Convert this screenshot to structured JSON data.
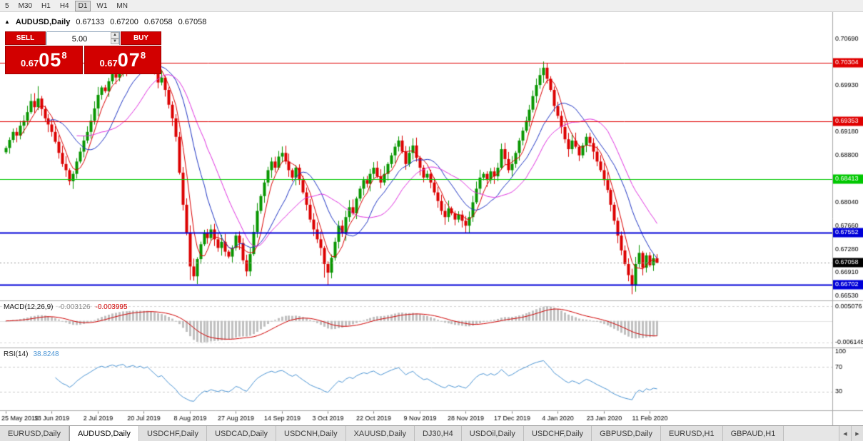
{
  "colors": {
    "one_click_red": "#d20000",
    "panel_separator": "#a8a8a8",
    "last_price_badge": "#000000"
  },
  "toolbar": {
    "periods": [
      "5",
      "M30",
      "H1",
      "H4",
      "D1",
      "W1",
      "MN"
    ],
    "active": "D1"
  },
  "chart_header": {
    "collapse_icon": "▲",
    "symbol": "AUDUSD,Daily",
    "open": "0.67133",
    "high": "0.67200",
    "low": "0.67058",
    "close": "0.67058"
  },
  "one_click": {
    "sell_label": "SELL",
    "buy_label": "BUY",
    "volume": "5.00",
    "spin_up_icon": "▲",
    "spin_down_icon": "▼",
    "sell_price": {
      "prefix": "0.67",
      "big": "05",
      "sup": "8"
    },
    "buy_price": {
      "prefix": "0.67",
      "big": "07",
      "sup": "8"
    }
  },
  "chart_data": {
    "type": "candlestick",
    "symbol": "AUDUSD",
    "timeframe": "Daily",
    "up_color": "#089600",
    "down_color": "#dc0000",
    "price_axis": {
      "min": 0.6645,
      "max": 0.7112,
      "ticks": [
        0.7069,
        0.6993,
        0.6918,
        0.688,
        0.6804,
        0.6766,
        0.6728,
        0.6691,
        0.6653
      ]
    },
    "levels": [
      {
        "price": 0.70304,
        "label": "0.70304",
        "color": "#e00000",
        "width": 1
      },
      {
        "price": 0.69353,
        "label": "0.69353",
        "color": "#e00000",
        "width": 1
      },
      {
        "price": 0.68413,
        "label": "0.68413",
        "color": "#00c800",
        "width": 1
      },
      {
        "price": 0.67552,
        "label": "0.67552",
        "color": "#0000d8",
        "width": 2
      },
      {
        "price": 0.66702,
        "label": "0.66702",
        "color": "#0000d8",
        "width": 2
      }
    ],
    "last_price": 0.67058,
    "last_price_label": "0.67058",
    "x_labels": [
      "25 May 2019",
      "13 Jun 2019",
      "2 Jul 2019",
      "20 Jul 2019",
      "8 Aug 2019",
      "27 Aug 2019",
      "14 Sep 2019",
      "3 Oct 2019",
      "22 Oct 2019",
      "9 Nov 2019",
      "28 Nov 2019",
      "17 Dec 2019",
      "4 Jan 2020",
      "23 Jan 2020",
      "11 Feb 2020"
    ],
    "x_label_indices": [
      0,
      13,
      26,
      39,
      52,
      65,
      78,
      91,
      104,
      117,
      130,
      143,
      156,
      169,
      182
    ],
    "candles": {
      "first_open": 0.6885,
      "closes": [
        0.6892,
        0.6905,
        0.6918,
        0.6912,
        0.6928,
        0.6936,
        0.695,
        0.6968,
        0.6958,
        0.6972,
        0.6955,
        0.694,
        0.693,
        0.6918,
        0.6902,
        0.6884,
        0.6866,
        0.6856,
        0.6838,
        0.685,
        0.687,
        0.6886,
        0.6904,
        0.6918,
        0.6936,
        0.6956,
        0.6978,
        0.699,
        0.6984,
        0.7,
        0.7012,
        0.7006,
        0.702,
        0.7028,
        0.7016,
        0.7024,
        0.7034,
        0.7026,
        0.7038,
        0.703,
        0.7042,
        0.7028,
        0.7014,
        0.6998,
        0.7006,
        0.6986,
        0.6962,
        0.694,
        0.691,
        0.6852,
        0.68,
        0.6755,
        0.67,
        0.6684,
        0.6712,
        0.6736,
        0.6754,
        0.6746,
        0.676,
        0.6744,
        0.673,
        0.674,
        0.6724,
        0.6716,
        0.673,
        0.675,
        0.6738,
        0.671,
        0.6692,
        0.672,
        0.6756,
        0.679,
        0.6814,
        0.6836,
        0.6856,
        0.687,
        0.686,
        0.6878,
        0.6884,
        0.687,
        0.6856,
        0.6844,
        0.686,
        0.684,
        0.682,
        0.68,
        0.6776,
        0.676,
        0.6744,
        0.673,
        0.6704,
        0.669,
        0.6714,
        0.674,
        0.6766,
        0.6754,
        0.678,
        0.6796,
        0.6786,
        0.681,
        0.6826,
        0.684,
        0.6834,
        0.685,
        0.686,
        0.6846,
        0.6836,
        0.685,
        0.6866,
        0.688,
        0.6894,
        0.6904,
        0.6886,
        0.6866,
        0.6884,
        0.6896,
        0.6876,
        0.686,
        0.6844,
        0.685,
        0.6836,
        0.682,
        0.6806,
        0.679,
        0.678,
        0.6794,
        0.6786,
        0.6776,
        0.6784,
        0.6774,
        0.6766,
        0.678,
        0.6804,
        0.6826,
        0.6844,
        0.685,
        0.684,
        0.6854,
        0.6846,
        0.686,
        0.689,
        0.6874,
        0.6856,
        0.6866,
        0.6884,
        0.6904,
        0.692,
        0.6936,
        0.6954,
        0.6976,
        0.6994,
        0.701,
        0.7022,
        0.7004,
        0.6986,
        0.696,
        0.6944,
        0.6926,
        0.6906,
        0.689,
        0.6904,
        0.6894,
        0.688,
        0.6896,
        0.691,
        0.69,
        0.6886,
        0.687,
        0.6856,
        0.684,
        0.6824,
        0.68,
        0.6774,
        0.675,
        0.6726,
        0.6704,
        0.6686,
        0.667,
        0.6704,
        0.6722,
        0.6698,
        0.6718,
        0.6702,
        0.67133,
        0.67058
      ],
      "wick_overrides": {
        "9": {
          "high": 0.6992
        },
        "40": {
          "high": 0.7048
        },
        "52": {
          "low": 0.6678
        },
        "53": {
          "low": 0.6677
        },
        "68": {
          "low": 0.6684
        },
        "90": {
          "low": 0.6682
        },
        "91": {
          "low": 0.667
        },
        "130": {
          "low": 0.6754
        },
        "152": {
          "high": 0.7032
        },
        "153": {
          "high": 0.703
        },
        "176": {
          "low": 0.6676
        },
        "177": {
          "low": 0.6655
        },
        "184": {
          "high": 0.672,
          "low": 0.67058
        }
      }
    },
    "moving_averages": [
      {
        "period": 5,
        "color": "#dc0000"
      },
      {
        "period": 13,
        "color": "#1f35c4"
      },
      {
        "period": 21,
        "color": "#e032e0"
      }
    ],
    "macd": {
      "name": "MACD(12,26,9)",
      "fast": 12,
      "slow": 26,
      "signal": 9,
      "value_main": "-0.003126",
      "value_signal": "-0.003995",
      "axis_labels": [
        "0.005076",
        "-0.0061485"
      ],
      "histogram_color": "#c0c0c0",
      "signal_color": "#d00000"
    },
    "rsi": {
      "name": "RSI(14)",
      "period": 14,
      "value": "38.8248",
      "levels": [
        100,
        70,
        30
      ],
      "color": "#4a94d4"
    }
  },
  "tab_bar": {
    "tabs": [
      "EURUSD,Daily",
      "AUDUSD,Daily",
      "USDCHF,Daily",
      "USDCAD,Daily",
      "USDCNH,Daily",
      "XAUUSD,Daily",
      "DJ30,H4",
      "USDOil,Daily",
      "USDCHF,Daily",
      "GBPUSD,Daily",
      "EURUSD,H1",
      "GBPAUD,H1"
    ],
    "active_index": 1,
    "scroll_left_icon": "◀",
    "scroll_right_icon": "▶"
  }
}
